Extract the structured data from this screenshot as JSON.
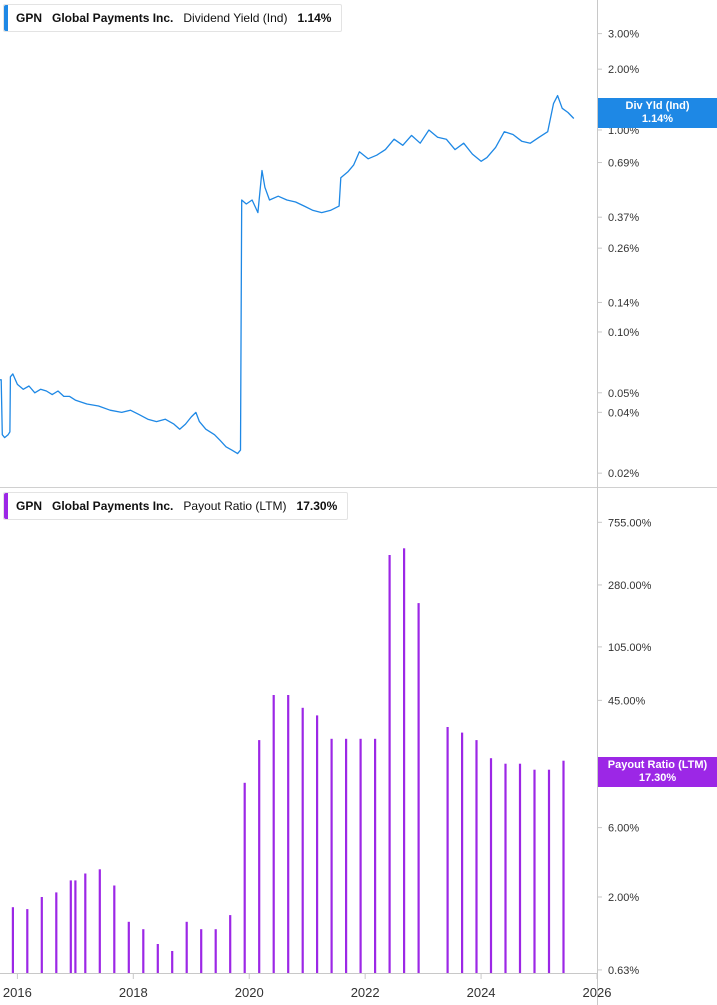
{
  "colors": {
    "dividend": "#1e88e5",
    "payout": "#9c27e6",
    "axis": "#c8c8c8",
    "text": "#333333"
  },
  "panels": [
    {
      "legend": {
        "ticker": "GPN",
        "company": "Global Payments Inc.",
        "metric": "Dividend Yield (Ind)",
        "value": "1.14%"
      },
      "tag": {
        "label": "Div Yld (Ind)",
        "value": "1.14%"
      }
    },
    {
      "legend": {
        "ticker": "GPN",
        "company": "Global Payments Inc.",
        "metric": "Payout Ratio (LTM)",
        "value": "17.30%"
      },
      "tag": {
        "label": "Payout Ratio (LTM)",
        "value": "17.30%"
      }
    }
  ],
  "chart_data": [
    {
      "type": "line",
      "scale": "log",
      "series": [
        {
          "name": "Dividend Yield (Ind)",
          "points": [
            [
              2015.7,
              0.058
            ],
            [
              2015.72,
              0.058
            ],
            [
              2015.74,
              0.031
            ],
            [
              2015.78,
              0.03
            ],
            [
              2015.84,
              0.031
            ],
            [
              2015.87,
              0.032
            ],
            [
              2015.88,
              0.06
            ],
            [
              2015.92,
              0.062
            ],
            [
              2016.0,
              0.055
            ],
            [
              2016.1,
              0.052
            ],
            [
              2016.2,
              0.054
            ],
            [
              2016.3,
              0.05
            ],
            [
              2016.4,
              0.052
            ],
            [
              2016.5,
              0.051
            ],
            [
              2016.6,
              0.049
            ],
            [
              2016.7,
              0.051
            ],
            [
              2016.8,
              0.048
            ],
            [
              2016.9,
              0.048
            ],
            [
              2017.0,
              0.046
            ],
            [
              2017.2,
              0.044
            ],
            [
              2017.4,
              0.043
            ],
            [
              2017.6,
              0.041
            ],
            [
              2017.8,
              0.04
            ],
            [
              2017.95,
              0.041
            ],
            [
              2018.1,
              0.039
            ],
            [
              2018.25,
              0.037
            ],
            [
              2018.4,
              0.036
            ],
            [
              2018.55,
              0.037
            ],
            [
              2018.7,
              0.035
            ],
            [
              2018.8,
              0.033
            ],
            [
              2018.9,
              0.035
            ],
            [
              2019.0,
              0.038
            ],
            [
              2019.08,
              0.04
            ],
            [
              2019.14,
              0.036
            ],
            [
              2019.25,
              0.033
            ],
            [
              2019.4,
              0.031
            ],
            [
              2019.5,
              0.029
            ],
            [
              2019.6,
              0.027
            ],
            [
              2019.7,
              0.026
            ],
            [
              2019.8,
              0.025
            ],
            [
              2019.85,
              0.026
            ],
            [
              2019.87,
              0.45
            ],
            [
              2019.95,
              0.43
            ],
            [
              2020.05,
              0.45
            ],
            [
              2020.15,
              0.39
            ],
            [
              2020.22,
              0.63
            ],
            [
              2020.27,
              0.52
            ],
            [
              2020.35,
              0.45
            ],
            [
              2020.5,
              0.47
            ],
            [
              2020.65,
              0.45
            ],
            [
              2020.8,
              0.44
            ],
            [
              2020.95,
              0.42
            ],
            [
              2021.1,
              0.4
            ],
            [
              2021.25,
              0.39
            ],
            [
              2021.4,
              0.4
            ],
            [
              2021.55,
              0.42
            ],
            [
              2021.58,
              0.58
            ],
            [
              2021.7,
              0.62
            ],
            [
              2021.8,
              0.67
            ],
            [
              2021.9,
              0.78
            ],
            [
              2022.05,
              0.72
            ],
            [
              2022.2,
              0.75
            ],
            [
              2022.35,
              0.8
            ],
            [
              2022.5,
              0.9
            ],
            [
              2022.65,
              0.84
            ],
            [
              2022.8,
              0.94
            ],
            [
              2022.95,
              0.86
            ],
            [
              2023.1,
              1.0
            ],
            [
              2023.25,
              0.92
            ],
            [
              2023.4,
              0.9
            ],
            [
              2023.55,
              0.8
            ],
            [
              2023.7,
              0.86
            ],
            [
              2023.85,
              0.76
            ],
            [
              2024.0,
              0.7
            ],
            [
              2024.1,
              0.73
            ],
            [
              2024.25,
              0.82
            ],
            [
              2024.4,
              0.98
            ],
            [
              2024.55,
              0.95
            ],
            [
              2024.7,
              0.88
            ],
            [
              2024.85,
              0.86
            ],
            [
              2025.0,
              0.92
            ],
            [
              2025.15,
              0.98
            ],
            [
              2025.25,
              1.35
            ],
            [
              2025.32,
              1.48
            ],
            [
              2025.4,
              1.28
            ],
            [
              2025.5,
              1.22
            ],
            [
              2025.6,
              1.14
            ]
          ]
        }
      ],
      "yticks": [
        "0.02%",
        "0.04%",
        "0.05%",
        "0.10%",
        "0.14%",
        "0.26%",
        "0.37%",
        "0.69%",
        "1.00%",
        "2.00%",
        "3.00%"
      ],
      "ytick_values": [
        0.02,
        0.04,
        0.05,
        0.1,
        0.14,
        0.26,
        0.37,
        0.69,
        1.0,
        2.0,
        3.0
      ],
      "ylim": [
        0.0185,
        4.4
      ]
    },
    {
      "type": "bar",
      "scale": "log",
      "series": [
        {
          "name": "Payout Ratio (LTM)",
          "points": [
            [
              2015.92,
              1.7
            ],
            [
              2016.17,
              1.65
            ],
            [
              2016.42,
              2.0
            ],
            [
              2016.67,
              2.15
            ],
            [
              2016.92,
              2.6
            ],
            [
              2017.0,
              2.6
            ],
            [
              2017.17,
              2.9
            ],
            [
              2017.42,
              3.1
            ],
            [
              2017.67,
              2.4
            ],
            [
              2017.92,
              1.35
            ],
            [
              2018.17,
              1.2
            ],
            [
              2018.42,
              0.95
            ],
            [
              2018.67,
              0.85
            ],
            [
              2018.92,
              1.35
            ],
            [
              2019.17,
              1.2
            ],
            [
              2019.42,
              1.2
            ],
            [
              2019.67,
              1.5
            ],
            [
              2019.92,
              12.2
            ],
            [
              2020.17,
              24.0
            ],
            [
              2020.42,
              49.0
            ],
            [
              2020.67,
              49.0
            ],
            [
              2020.92,
              40.0
            ],
            [
              2021.17,
              35.5
            ],
            [
              2021.42,
              24.5
            ],
            [
              2021.67,
              24.5
            ],
            [
              2021.92,
              24.5
            ],
            [
              2022.17,
              24.5
            ],
            [
              2022.42,
              450.0
            ],
            [
              2022.67,
              500.0
            ],
            [
              2022.92,
              210.0
            ],
            [
              2023.42,
              29.5
            ],
            [
              2023.67,
              27.0
            ],
            [
              2023.92,
              24.0
            ],
            [
              2024.17,
              18.0
            ],
            [
              2024.42,
              16.5
            ],
            [
              2024.67,
              16.5
            ],
            [
              2024.92,
              15.0
            ],
            [
              2025.17,
              15.0
            ],
            [
              2025.42,
              17.3
            ]
          ]
        }
      ],
      "yticks": [
        "0.63%",
        "2.00%",
        "6.00%",
        "15.00%",
        "45.00%",
        "105.00%",
        "280.00%",
        "755.00%"
      ],
      "ytick_values": [
        0.63,
        2.0,
        6.0,
        15.0,
        45.0,
        105.0,
        280.0,
        755.0
      ],
      "ylim": [
        0.6,
        1300
      ]
    }
  ],
  "xaxis": {
    "labels": [
      "2016",
      "2018",
      "2020",
      "2022",
      "2024",
      "2026"
    ],
    "values": [
      2016,
      2018,
      2020,
      2022,
      2024,
      2026
    ],
    "xlim": [
      2015.7,
      2026.0
    ]
  }
}
